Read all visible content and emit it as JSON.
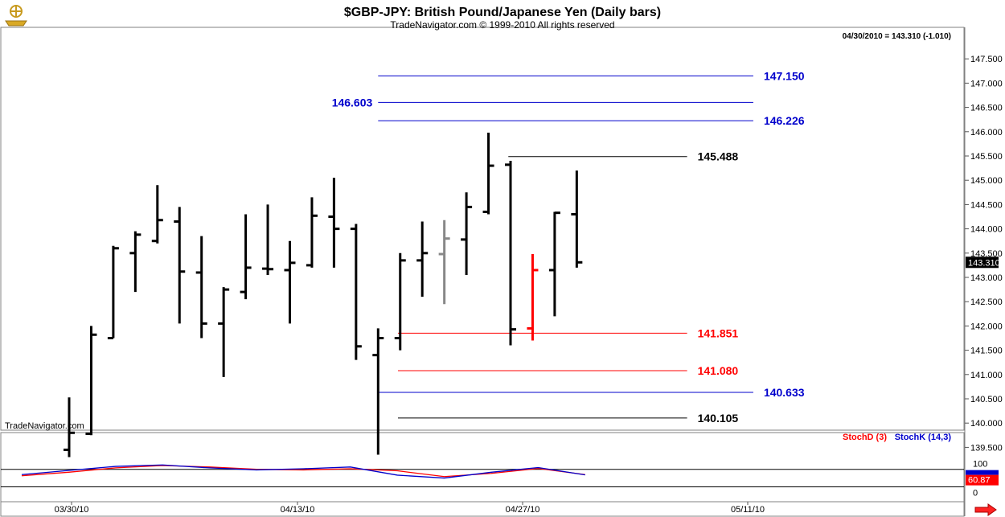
{
  "header": {
    "title": "$GBP-JPY:  British Pound/Japanese Yen  (Daily bars)",
    "copyright": "TradeNavigator.com © 1999-2010 All rights reserved",
    "last_quote": "04/30/2010 = 143.310 (-1.010)",
    "watermark": "TradeNavigator.com"
  },
  "toolbar": {
    "logo": "navigator-ship-wheel-icon",
    "next_arrow": "right-arrow-icon"
  },
  "colors": {
    "bar": "#000000",
    "bar_grey": "#888888",
    "bar_red": "#ff0000",
    "blue_level": "#0000cc",
    "red_level": "#ff0000",
    "black_level": "#000000",
    "stoch_d": "#ff0000",
    "stoch_k": "#0000cc"
  },
  "chart_data": [
    {
      "type": "ohlc",
      "title": "$GBP-JPY:  British Pound/Japanese Yen  (Daily bars)",
      "ylim": [
        139.3,
        147.6
      ],
      "y_ticks": [
        "147.500",
        "147.000",
        "146.500",
        "146.000",
        "145.500",
        "145.000",
        "144.500",
        "144.000",
        "143.500",
        "143.000",
        "142.500",
        "142.000",
        "141.500",
        "141.000",
        "140.500",
        "140.000",
        "139.500"
      ],
      "x_ticks": [
        "03/30/10",
        "04/13/10",
        "04/27/10",
        "05/11/10"
      ],
      "last_price_label": "143.310",
      "bars": [
        {
          "i": 0,
          "open": 139.45,
          "high": 140.53,
          "low": 139.3,
          "close": 139.8
        },
        {
          "i": 1,
          "open": 139.78,
          "high": 142.0,
          "low": 139.75,
          "close": 141.82
        },
        {
          "i": 2,
          "open": 141.75,
          "high": 143.65,
          "low": 141.75,
          "close": 143.6
        },
        {
          "i": 3,
          "open": 143.5,
          "high": 143.95,
          "low": 142.7,
          "close": 143.88
        },
        {
          "i": 4,
          "open": 143.75,
          "high": 144.9,
          "low": 143.7,
          "close": 144.18
        },
        {
          "i": 5,
          "open": 144.15,
          "high": 144.45,
          "low": 142.05,
          "close": 143.12
        },
        {
          "i": 6,
          "open": 143.1,
          "high": 143.85,
          "low": 141.75,
          "close": 142.05
        },
        {
          "i": 7,
          "open": 142.05,
          "high": 142.8,
          "low": 140.95,
          "close": 142.75
        },
        {
          "i": 8,
          "open": 142.7,
          "high": 144.3,
          "low": 142.55,
          "close": 143.2
        },
        {
          "i": 9,
          "open": 143.18,
          "high": 144.5,
          "low": 143.05,
          "close": 143.17
        },
        {
          "i": 10,
          "open": 143.15,
          "high": 143.75,
          "low": 142.05,
          "close": 143.3
        },
        {
          "i": 11,
          "open": 143.25,
          "high": 144.65,
          "low": 143.2,
          "close": 144.27
        },
        {
          "i": 12,
          "open": 144.25,
          "high": 145.05,
          "low": 143.2,
          "close": 144.0
        },
        {
          "i": 13,
          "open": 144.0,
          "high": 144.1,
          "low": 141.3,
          "close": 141.58
        },
        {
          "i": 14,
          "open": 141.4,
          "high": 141.95,
          "low": 139.35,
          "close": 141.75
        },
        {
          "i": 15,
          "open": 141.75,
          "high": 143.5,
          "low": 141.5,
          "close": 143.35
        },
        {
          "i": 16,
          "open": 143.35,
          "high": 144.15,
          "low": 142.6,
          "close": 143.5
        },
        {
          "i": 17,
          "open": 143.48,
          "high": 144.18,
          "low": 142.45,
          "close": 143.8,
          "color": "grey"
        },
        {
          "i": 18,
          "open": 143.78,
          "high": 144.75,
          "low": 143.05,
          "close": 144.45
        },
        {
          "i": 19,
          "open": 144.35,
          "high": 145.98,
          "low": 144.3,
          "close": 145.3
        },
        {
          "i": 20,
          "open": 145.32,
          "high": 145.4,
          "low": 141.6,
          "close": 141.93
        },
        {
          "i": 21,
          "open": 141.95,
          "high": 143.48,
          "low": 141.7,
          "close": 143.15,
          "color": "red"
        },
        {
          "i": 22,
          "open": 143.15,
          "high": 144.35,
          "low": 142.2,
          "close": 144.33
        },
        {
          "i": 23,
          "open": 144.3,
          "high": 145.2,
          "low": 143.2,
          "close": 143.31
        }
      ],
      "levels": [
        {
          "value": 147.15,
          "label": "147.150",
          "color": "blue",
          "from": 14,
          "to": 31,
          "label_side": "right"
        },
        {
          "value": 146.603,
          "label": "146.603",
          "color": "blue",
          "from": 14,
          "to": 31,
          "label_side": "left"
        },
        {
          "value": 146.226,
          "label": "146.226",
          "color": "blue",
          "from": 14,
          "to": 31,
          "label_side": "right"
        },
        {
          "value": 145.488,
          "label": "145.488",
          "color": "black",
          "from": 19.9,
          "to": 28,
          "label_side": "right"
        },
        {
          "value": 141.851,
          "label": "141.851",
          "color": "red",
          "from": 14.9,
          "to": 28,
          "label_side": "right"
        },
        {
          "value": 141.08,
          "label": "141.080",
          "color": "red",
          "from": 14.9,
          "to": 28,
          "label_side": "right"
        },
        {
          "value": 140.633,
          "label": "140.633",
          "color": "blue",
          "from": 14,
          "to": 31,
          "label_side": "right"
        },
        {
          "value": 140.105,
          "label": "140.105",
          "color": "black",
          "from": 14.9,
          "to": 28,
          "label_side": "right"
        }
      ]
    },
    {
      "type": "line",
      "title": "Stochastic",
      "ylim": [
        -10,
        110
      ],
      "y_ticks": [
        "100",
        "50",
        "0"
      ],
      "reference_lines": [
        80,
        20
      ],
      "last_value_label": "60.87",
      "series": [
        {
          "name": "StochD (3)",
          "color": "red",
          "x": [
            0,
            2,
            4,
            6,
            8,
            10,
            12,
            14,
            16,
            18,
            20,
            22,
            24
          ],
          "values": [
            58,
            70,
            85,
            93,
            88,
            80,
            78,
            82,
            75,
            55,
            66,
            83,
            62
          ]
        },
        {
          "name": "StochK (14,3)",
          "color": "blue",
          "x": [
            0,
            2,
            4,
            6,
            8,
            10,
            12,
            14,
            16,
            18,
            20,
            22,
            24
          ],
          "values": [
            62,
            76,
            90,
            95,
            85,
            78,
            82,
            88,
            60,
            50,
            70,
            86,
            61
          ]
        }
      ]
    }
  ]
}
